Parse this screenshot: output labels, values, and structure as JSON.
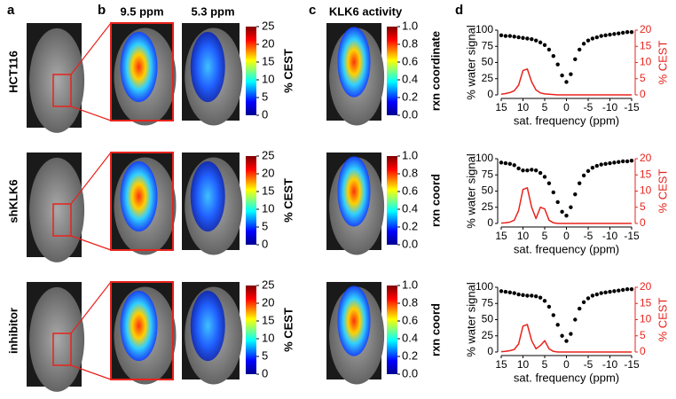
{
  "panel_labels": [
    "a",
    "b",
    "c",
    "d"
  ],
  "column_headers": {
    "cest_high": "9.5 ppm",
    "cest_low": "5.3 ppm",
    "activity": "KLK6 activity"
  },
  "rows": [
    {
      "label": "HCT116",
      "cest_bar": {
        "label": "% CEST",
        "lim": [
          0,
          25
        ],
        "ticks": [
          0,
          5,
          10,
          15,
          20,
          25
        ]
      },
      "rxn_bar": {
        "label": "rxn coordinate",
        "lim": [
          0,
          1
        ],
        "ticks": [
          {
            "value": 0,
            "label": "0.0"
          },
          0.2,
          0.4,
          0.6,
          0.8,
          {
            "value": 1,
            "label": "1.0"
          }
        ]
      }
    },
    {
      "label": "shKLK6",
      "cest_bar": {
        "label": "% CEST",
        "lim": [
          0,
          25
        ],
        "ticks": [
          0,
          5,
          10,
          15,
          20,
          25
        ]
      },
      "rxn_bar": {
        "label": "rxn coord",
        "lim": [
          0,
          1
        ],
        "ticks": [
          {
            "value": 0,
            "label": "0.0"
          },
          0.2,
          0.4,
          0.6,
          0.8,
          {
            "value": 1,
            "label": "1.0"
          }
        ]
      }
    },
    {
      "label": "inhibitor",
      "cest_bar": {
        "label": "% CEST",
        "lim": [
          0,
          25
        ],
        "ticks": [
          0,
          5,
          10,
          15,
          20,
          25
        ]
      },
      "rxn_bar": {
        "label": "rxn coord",
        "lim": [
          0,
          1
        ],
        "ticks": [
          {
            "value": 0,
            "label": "0.0"
          },
          0.2,
          0.4,
          0.6,
          0.8,
          {
            "value": 1,
            "label": "1.0"
          }
        ]
      }
    }
  ],
  "chart_data": [
    {
      "type": "line",
      "xlabel": "sat. frequency (ppm)",
      "ylabel": "% water signal",
      "y2label": "% CEST",
      "x": [
        15,
        14,
        13,
        12,
        11,
        10,
        9,
        8,
        7,
        6,
        5,
        4,
        3,
        2,
        1,
        0,
        -1,
        -2,
        -3,
        -4,
        -5,
        -6,
        -7,
        -8,
        -9,
        -10,
        -11,
        -12,
        -13,
        -14,
        -15
      ],
      "xlim": [
        15,
        -15
      ],
      "xticks": [
        15,
        10,
        5,
        0,
        -5,
        -10,
        -15
      ],
      "ylim": [
        0,
        100
      ],
      "yticks": [
        0,
        25,
        50,
        75,
        100
      ],
      "y2lim": [
        0,
        20
      ],
      "y2ticks": [
        0,
        5,
        10,
        15,
        20
      ],
      "series": [
        {
          "color": "#000000",
          "style": "markers",
          "values": [
            92,
            91,
            91,
            90,
            89,
            88,
            87,
            86,
            84,
            81,
            77,
            70,
            60,
            47,
            30,
            20,
            32,
            55,
            70,
            79,
            84,
            87,
            89,
            91,
            92,
            93,
            94,
            95,
            96,
            97,
            97
          ]
        },
        {
          "color": "#e8231c",
          "style": "line",
          "axis": "y2",
          "values": [
            0.2,
            0.4,
            0.7,
            1.3,
            3,
            7.5,
            8,
            4,
            1.5,
            0.6,
            0.3,
            0.2,
            0.1,
            0,
            0,
            0,
            0,
            0,
            0,
            0,
            0,
            0,
            0,
            0,
            0,
            0,
            0,
            0,
            0,
            0,
            0
          ]
        }
      ]
    },
    {
      "type": "line",
      "xlabel": "sat. frequency (ppm)",
      "ylabel": "% water signal",
      "y2label": "% CEST",
      "x": [
        15,
        14,
        13,
        12,
        11,
        10,
        9,
        8,
        7,
        6,
        5,
        4,
        3,
        2,
        1,
        0,
        -1,
        -2,
        -3,
        -4,
        -5,
        -6,
        -7,
        -8,
        -9,
        -10,
        -11,
        -12,
        -13,
        -14,
        -15
      ],
      "xlim": [
        15,
        -15
      ],
      "xticks": [
        15,
        10,
        5,
        0,
        -5,
        -10,
        -15
      ],
      "ylim": [
        0,
        100
      ],
      "yticks": [
        0,
        25,
        50,
        75,
        100
      ],
      "y2lim": [
        0,
        20
      ],
      "y2ticks": [
        0,
        5,
        10,
        15,
        20
      ],
      "series": [
        {
          "color": "#000000",
          "style": "markers",
          "values": [
            94,
            93,
            92,
            90,
            85,
            82,
            82,
            83,
            82,
            78,
            72,
            62,
            48,
            33,
            18,
            12,
            25,
            45,
            62,
            74,
            81,
            86,
            89,
            91,
            92,
            93,
            94,
            95,
            96,
            96,
            97
          ]
        },
        {
          "color": "#e8231c",
          "style": "line",
          "axis": "y2",
          "values": [
            0.1,
            0.2,
            0.4,
            1,
            4,
            10.5,
            11,
            5,
            1.5,
            5,
            4.5,
            1,
            0.2,
            0,
            0,
            0,
            0,
            0,
            0,
            0,
            0,
            0,
            0,
            0,
            0,
            0,
            0,
            0,
            0,
            0,
            0
          ]
        }
      ]
    },
    {
      "type": "line",
      "xlabel": "sat. frequency (ppm)",
      "ylabel": "% water signal",
      "y2label": "% CEST",
      "x": [
        15,
        14,
        13,
        12,
        11,
        10,
        9,
        8,
        7,
        6,
        5,
        4,
        3,
        2,
        1,
        0,
        -1,
        -2,
        -3,
        -4,
        -5,
        -6,
        -7,
        -8,
        -9,
        -10,
        -11,
        -12,
        -13,
        -14,
        -15
      ],
      "xlim": [
        15,
        -15
      ],
      "xticks": [
        15,
        10,
        5,
        0,
        -5,
        -10,
        -15
      ],
      "ylim": [
        0,
        100
      ],
      "yticks": [
        0,
        25,
        50,
        75,
        100
      ],
      "y2lim": [
        0,
        20
      ],
      "y2ticks": [
        0,
        5,
        10,
        15,
        20
      ],
      "series": [
        {
          "color": "#000000",
          "style": "markers",
          "values": [
            94,
            93,
            92,
            91,
            89,
            88,
            87,
            87,
            86,
            84,
            79,
            70,
            57,
            42,
            25,
            17,
            28,
            50,
            67,
            77,
            83,
            87,
            89,
            91,
            92,
            93,
            94,
            95,
            96,
            97,
            97
          ]
        },
        {
          "color": "#e8231c",
          "style": "line",
          "axis": "y2",
          "values": [
            0.1,
            0.2,
            0.4,
            0.8,
            2.5,
            8,
            8.5,
            3.5,
            1,
            2,
            3.5,
            1,
            0.2,
            0,
            0,
            0,
            0,
            0,
            0,
            0,
            0,
            0,
            0,
            0,
            0,
            0,
            0,
            0,
            0,
            0,
            0
          ]
        }
      ]
    }
  ]
}
